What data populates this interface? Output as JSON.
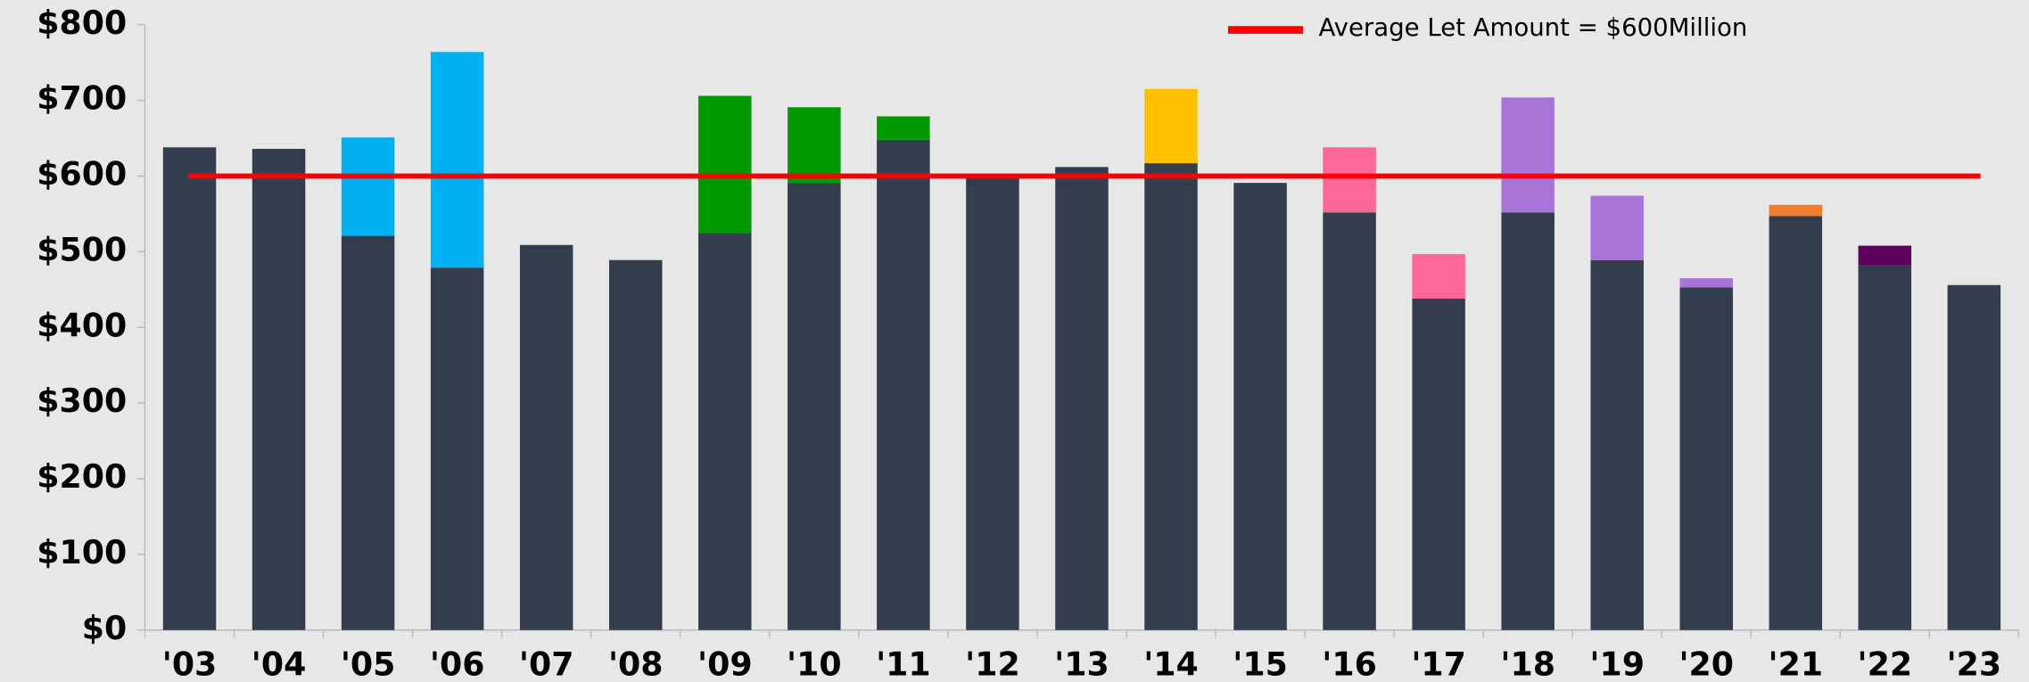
{
  "chart_data": {
    "type": "stacked_bar",
    "categories": [
      "'03",
      "'04",
      "'05",
      "'06",
      "'07",
      "'08",
      "'09",
      "'10",
      "'11",
      "'12",
      "'13",
      "'14",
      "'15",
      "'16",
      "'17",
      "'18",
      "'19",
      "'20",
      "'21",
      "'22",
      "'23"
    ],
    "series": [
      {
        "color": "#333d4e",
        "values": [
          638,
          636,
          521,
          479,
          509,
          489,
          525,
          591,
          648,
          597,
          612,
          617,
          591,
          552,
          438,
          552,
          489,
          453,
          547,
          482,
          456
        ]
      },
      {
        "color": "#00b0f0",
        "values": [
          null,
          null,
          130,
          285,
          null,
          null,
          null,
          null,
          null,
          null,
          null,
          null,
          null,
          null,
          null,
          null,
          null,
          null,
          null,
          null,
          null
        ]
      },
      {
        "color": "#009900",
        "values": [
          null,
          null,
          null,
          null,
          null,
          null,
          181,
          100,
          31,
          null,
          null,
          null,
          null,
          null,
          null,
          null,
          null,
          null,
          null,
          null,
          null
        ]
      },
      {
        "color": "#ffc000",
        "values": [
          null,
          null,
          null,
          null,
          null,
          null,
          null,
          null,
          null,
          null,
          null,
          98,
          null,
          null,
          null,
          null,
          null,
          null,
          null,
          null,
          null
        ]
      },
      {
        "color": "#ff6699",
        "values": [
          null,
          null,
          null,
          null,
          null,
          null,
          null,
          null,
          null,
          null,
          null,
          null,
          null,
          86,
          59,
          null,
          null,
          null,
          null,
          null,
          null
        ]
      },
      {
        "color": "#a974d8",
        "values": [
          null,
          null,
          null,
          null,
          null,
          null,
          null,
          null,
          null,
          null,
          null,
          null,
          null,
          null,
          null,
          152,
          85,
          12,
          null,
          null,
          null
        ]
      },
      {
        "color": "#ed7d31",
        "values": [
          null,
          null,
          null,
          null,
          null,
          null,
          null,
          null,
          null,
          null,
          null,
          null,
          null,
          null,
          null,
          null,
          null,
          null,
          15,
          null,
          null
        ]
      },
      {
        "color": "#5c005c",
        "values": [
          null,
          null,
          null,
          null,
          null,
          null,
          null,
          null,
          null,
          null,
          null,
          null,
          null,
          null,
          null,
          null,
          null,
          null,
          null,
          26,
          null
        ]
      }
    ],
    "reference_line": {
      "value": 600,
      "label": "Average Let Amount = $600Million",
      "color": "#ff0000"
    },
    "ylim": [
      0,
      800
    ],
    "yticks": [
      {
        "value": 0,
        "label": "$0"
      },
      {
        "value": 100,
        "label": "$100"
      },
      {
        "value": 200,
        "label": "$200"
      },
      {
        "value": 300,
        "label": "$300"
      },
      {
        "value": 400,
        "label": "$400"
      },
      {
        "value": 500,
        "label": "$500"
      },
      {
        "value": 600,
        "label": "$600"
      },
      {
        "value": 700,
        "label": "$700"
      },
      {
        "value": 800,
        "label": "$800"
      }
    ],
    "legend": "top-right"
  }
}
